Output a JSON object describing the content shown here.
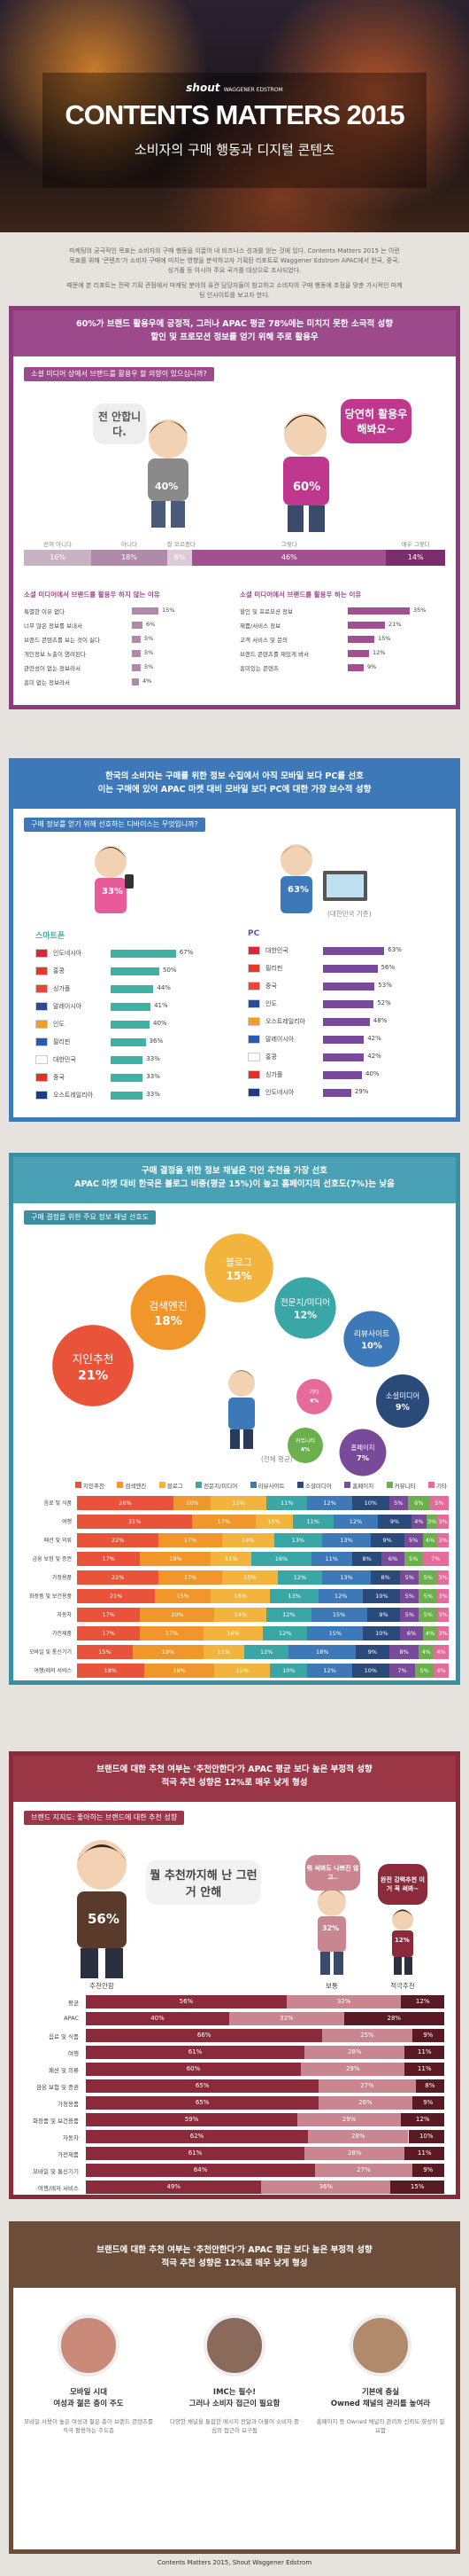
{
  "header": {
    "brand": "shout",
    "brand_sub": "WAGGENER EDSTROM",
    "title": "CONTENTS MATTERS 2015",
    "subtitle": "소비자의 구매 행동과 디지털 콘텐츠"
  },
  "intro": [
    "마케팅의 궁극적인 목표는 소비자의 구매 행동을 이끌어 내 비즈니스 성과를 얻는 것에 있다. Contents Matters 2015 는 이런 목표를 위해 '콘텐츠'가 소비자 구매에 미치는 영향을 분석하고자 기획된 리포트로 Waggener Edstrom APAC에서 한국, 중국, 싱가폴 등 아시아 주요 국가를 대상으로 조사되었다.",
    "때문에 본 리포트는 전략 기획 관점에서 마케팅 분야의 유관 담당자들이 참고하고 소비자의 구매 행동에 초점을 맞춘 가시적인 마케팅 인사이트를 보고자 한다."
  ],
  "section1": {
    "heading": [
      "60%가 브랜드 활용우에 긍정적, 그러나 APAC 평균 78%에는 미치지 못한 소극적 성향",
      "할인 및 프로모션 정보를 얻기 위해 주로 활용우"
    ],
    "question": "소셜 미디어 상에서 브랜드를 활용우 할 의향이 있으십니까?",
    "no": {
      "speech": "전 안합니다.",
      "share": "40%"
    },
    "yes": {
      "speech": "당연히 활용우 해봐요~",
      "share": "60%"
    },
    "scale": {
      "categories": [
        "전혀 아니다",
        "아니다",
        "잘 모르겠다",
        "그렇다",
        "매우 그렇다"
      ],
      "values": [
        16,
        18,
        6,
        46,
        14
      ],
      "value_labels": [
        "16%",
        "18%",
        "6%",
        "46%",
        "14%"
      ],
      "colors": [
        "#c8b2c4",
        "#b08aa8",
        "#dccbd8",
        "#a2508f",
        "#7b2e6d"
      ]
    },
    "reasons_no": {
      "title": "소셜 미디어에서 브랜드를 활용우 하지 않는 이유",
      "items": [
        "특별한 이유 없다",
        "너무 많은 정보를 보내서",
        "브랜드 콘텐츠를 보는 것이 싫다",
        "개인정보 노출이 염려된다",
        "관련성이 없는 정보라서",
        "흥미 없는 정보라서"
      ],
      "values": [
        15,
        6,
        5,
        5,
        5,
        4
      ],
      "value_labels": [
        "15%",
        "6%",
        "5%",
        "5%",
        "5%",
        "4%"
      ],
      "color": "#b08aa8"
    },
    "reasons_yes": {
      "title": "소셜 미디어에서 브랜드를 활용우 하는 이유",
      "items": [
        "할인 및 프로모션 정보",
        "제품/서비스 정보",
        "고객 서비스 및 문의",
        "브랜드 콘텐츠를 재밌게 봐서",
        "흥미있는 콘텐츠"
      ],
      "values": [
        35,
        21,
        15,
        12,
        9
      ],
      "value_labels": [
        "35%",
        "21%",
        "15%",
        "12%",
        "9%"
      ],
      "color": "#a2508f"
    }
  },
  "section2": {
    "heading": [
      "한국의 소비자는 구매를 위한 정보 수집에서 아직 모바일 보다 PC를 선호",
      "이는 구매에 있어 APAC 마켓 대비 모바일 보다 PC에 대한 가장 보수적 성향"
    ],
    "question": "구매 정보를 얻기 위해 선호하는 디바이스는 무엇입니까?",
    "smartphone_share": "33%",
    "pc_share": "63%",
    "note": "(대한민국 기준)",
    "smartphone": {
      "title": "스마트폰",
      "countries": [
        "인도네시아",
        "홍콩",
        "싱가폴",
        "말레이시아",
        "인도",
        "필리핀",
        "대한민국",
        "중국",
        "오스트레일리아"
      ],
      "values": [
        67,
        50,
        44,
        41,
        40,
        36,
        33,
        33,
        33
      ],
      "value_labels": [
        "67%",
        "50%",
        "44%",
        "41%",
        "40%",
        "36%",
        "33%",
        "33%",
        "33%"
      ],
      "color": "#3fb2a4"
    },
    "pc": {
      "title": "PC",
      "countries": [
        "대한민국",
        "필리핀",
        "중국",
        "인도",
        "오스트레일리아",
        "말레이시아",
        "홍콩",
        "싱가폴",
        "인도네시아"
      ],
      "values": [
        63,
        56,
        53,
        52,
        48,
        42,
        42,
        40,
        29
      ],
      "value_labels": [
        "63%",
        "56%",
        "53%",
        "52%",
        "48%",
        "42%",
        "42%",
        "40%",
        "29%"
      ],
      "color": "#7a4a9a"
    }
  },
  "section3": {
    "heading": [
      "구매 결정을 위한 정보 채널은 지인 추천을 가장 선호",
      "APAC 마켓 대비 한국은 블로그 비중(평균 15%)이 높고 홈페이지의 선호도(7%)는 낮음"
    ],
    "question": "구매 결정을 위한 주요 정보 채널 선호도",
    "note": "(전체 평균)",
    "channels": [
      "지인추천",
      "검색엔진",
      "블로그",
      "전문지/미디어",
      "리뷰사이트",
      "소셜미디어",
      "홈페이지",
      "커뮤니티",
      "기타"
    ],
    "values": [
      21,
      18,
      15,
      12,
      10,
      9,
      7,
      4,
      4
    ],
    "value_labels": [
      "21%",
      "18%",
      "15%",
      "12%",
      "10%",
      "9%",
      "7%",
      "4%",
      "4%"
    ],
    "colors": [
      "#e8533a",
      "#f0962a",
      "#f2b43c",
      "#3aa6a6",
      "#3d79b8",
      "#2a4a7a",
      "#7a4a9a",
      "#6ab04c",
      "#e56b9b"
    ],
    "rows": [
      {
        "label": "음료 및 식품",
        "values": [
          26,
          10,
          15,
          11,
          12,
          10,
          5,
          6,
          5
        ],
        "value_labels": [
          "26%",
          "10%",
          "15%",
          "11%",
          "12%",
          "10%",
          "5%",
          "6%",
          "5%"
        ]
      },
      {
        "label": "여행",
        "values": [
          31,
          17,
          10,
          11,
          12,
          9,
          4,
          3,
          3
        ],
        "value_labels": [
          "31%",
          "17%",
          "10%",
          "11%",
          "12%",
          "9%",
          "4%",
          "3%",
          "3%"
        ]
      },
      {
        "label": "패션 및 의류",
        "values": [
          22,
          17,
          14,
          13,
          13,
          9,
          5,
          4,
          3
        ],
        "value_labels": [
          "22%",
          "17%",
          "14%",
          "13%",
          "13%",
          "9%",
          "5%",
          "4%",
          "3%"
        ]
      },
      {
        "label": "금융 보험 및 증권",
        "values": [
          17,
          19,
          11,
          16,
          11,
          8,
          6,
          5,
          7
        ],
        "value_labels": [
          "17%",
          "19%",
          "11%",
          "16%",
          "11%",
          "8%",
          "6%",
          "5%",
          "7%"
        ]
      },
      {
        "label": "가정용품",
        "values": [
          22,
          17,
          15,
          12,
          13,
          8,
          5,
          5,
          3
        ],
        "value_labels": [
          "22%",
          "17%",
          "15%",
          "12%",
          "13%",
          "8%",
          "5%",
          "5%",
          "3%"
        ]
      },
      {
        "label": "화장품 및 보건용품",
        "values": [
          21,
          15,
          16,
          13,
          12,
          10,
          5,
          5,
          3
        ],
        "value_labels": [
          "21%",
          "15%",
          "16%",
          "13%",
          "12%",
          "10%",
          "5%",
          "5%",
          "3%"
        ]
      },
      {
        "label": "자동차",
        "values": [
          17,
          20,
          14,
          12,
          15,
          9,
          5,
          5,
          3
        ],
        "value_labels": [
          "17%",
          "20%",
          "14%",
          "12%",
          "15%",
          "9%",
          "5%",
          "5%",
          "3%"
        ]
      },
      {
        "label": "가전제품",
        "values": [
          17,
          17,
          16,
          12,
          15,
          10,
          6,
          4,
          3
        ],
        "value_labels": [
          "17%",
          "17%",
          "16%",
          "12%",
          "15%",
          "10%",
          "6%",
          "4%",
          "3%"
        ]
      },
      {
        "label": "모바일 및 통신기기",
        "values": [
          15,
          19,
          11,
          12,
          18,
          9,
          8,
          4,
          4
        ],
        "value_labels": [
          "15%",
          "19%",
          "11%",
          "12%",
          "18%",
          "9%",
          "8%",
          "4%",
          "4%"
        ]
      },
      {
        "label": "여행/레저 서비스",
        "values": [
          18,
          19,
          15,
          10,
          12,
          10,
          7,
          5,
          4
        ],
        "value_labels": [
          "18%",
          "19%",
          "15%",
          "10%",
          "12%",
          "10%",
          "7%",
          "5%",
          "4%"
        ]
      }
    ]
  },
  "section4": {
    "heading": [
      "브랜드에 대한 추천 여부는 '추천안한다'가 APAC 평균 보다 높은 부정적 성향",
      "적극 추천 성향은 12%로 매우 낮게 형성"
    ],
    "question": "브랜드 지지도: 좋아하는 브랜드에 대한 추천 성향",
    "groups": [
      {
        "speech": "뭘 추천까지해 난 그런거 안해",
        "share": "56%",
        "label": "추천안함"
      },
      {
        "speech": "뭐 써봐도 나쁘진 않고..",
        "share": "32%",
        "label": "보통"
      },
      {
        "speech": "완전 강력추천 이거 꼭 써봐~",
        "share": "12%",
        "label": "적극추천"
      }
    ],
    "colors": [
      "#8a2a3a",
      "#c98590",
      "#5a1a24"
    ],
    "rows": [
      {
        "label": "평균",
        "values": [
          56,
          32,
          12
        ],
        "value_labels": [
          "56%",
          "32%",
          "12%"
        ]
      },
      {
        "label": "APAC",
        "values": [
          40,
          32,
          28
        ],
        "value_labels": [
          "40%",
          "32%",
          "28%"
        ]
      },
      {
        "label": "음료 및 식품",
        "values": [
          66,
          25,
          9
        ],
        "value_labels": [
          "66%",
          "25%",
          "9%"
        ]
      },
      {
        "label": "여행",
        "values": [
          61,
          28,
          11
        ],
        "value_labels": [
          "61%",
          "28%",
          "11%"
        ]
      },
      {
        "label": "패션 및 의류",
        "values": [
          60,
          29,
          11
        ],
        "value_labels": [
          "60%",
          "29%",
          "11%"
        ]
      },
      {
        "label": "금융 보험 및 증권",
        "values": [
          65,
          27,
          8
        ],
        "value_labels": [
          "65%",
          "27%",
          "8%"
        ]
      },
      {
        "label": "가정용품",
        "values": [
          65,
          26,
          9
        ],
        "value_labels": [
          "65%",
          "26%",
          "9%"
        ]
      },
      {
        "label": "화장품 및 보건용품",
        "values": [
          59,
          29,
          12
        ],
        "value_labels": [
          "59%",
          "29%",
          "12%"
        ]
      },
      {
        "label": "자동차",
        "values": [
          62,
          28,
          10
        ],
        "value_labels": [
          "62%",
          "28%",
          "10%"
        ]
      },
      {
        "label": "가전제품",
        "values": [
          61,
          28,
          11
        ],
        "value_labels": [
          "61%",
          "28%",
          "11%"
        ]
      },
      {
        "label": "모바일 및 통신기기",
        "values": [
          64,
          27,
          9
        ],
        "value_labels": [
          "64%",
          "27%",
          "9%"
        ]
      },
      {
        "label": "여행/레저 서비스",
        "values": [
          49,
          36,
          15
        ],
        "value_labels": [
          "49%",
          "36%",
          "15%"
        ]
      }
    ]
  },
  "section5": {
    "heading": [
      "브랜드에 대한 추천 여부는 '추천안한다'가 APAC 평균 보다 높은 부정적 성향",
      "적극 추천 성향은 12%로 매우 낮게 형성"
    ],
    "items": [
      {
        "title": [
          "모바일 시대",
          "여성과 젊은 층이 주도"
        ],
        "desc": "모바일 사용이 높은 여성과 젊은 층이 브랜드 콘텐츠를 적극 활용하는 주도층"
      },
      {
        "title": [
          "IMC는 필수!",
          "그러나 소비자 접근이 필요함"
        ],
        "desc": "다양한 채널을 통합한 메시지 전달과 더불어 소비자 중심의 접근이 요구됨"
      },
      {
        "title": [
          "기본에 충실",
          "Owned 채널의 관리를 높여라"
        ],
        "desc": "홈페이지 등 Owned 채널의 관리와 신뢰도 향상이 필요함"
      }
    ]
  },
  "footer": "Contents Matters 2015, Shout Waggener Edstrom"
}
